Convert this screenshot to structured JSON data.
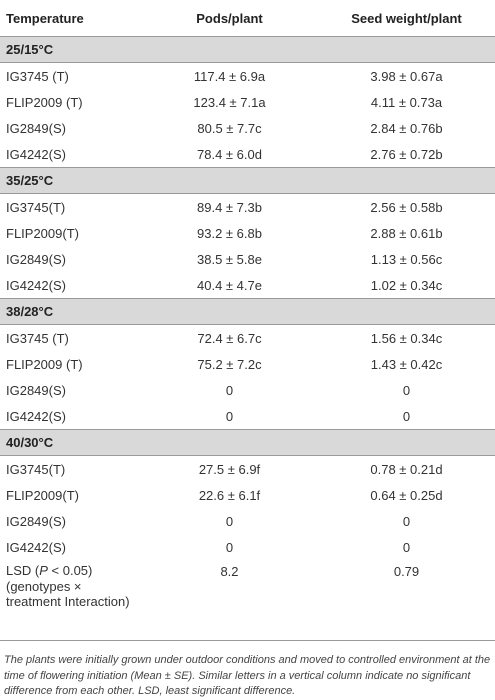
{
  "header": {
    "col1": "Temperature",
    "col2": "Pods/plant",
    "col3": "Seed weight/plant"
  },
  "groups": [
    {
      "label": "25/15°C",
      "rows": [
        {
          "genotype": "IG3745 (T)",
          "pods": "117.4 ± 6.9a",
          "seed": "3.98 ± 0.67a"
        },
        {
          "genotype": "FLIP2009 (T)",
          "pods": "123.4 ± 7.1a",
          "seed": "4.11 ± 0.73a"
        },
        {
          "genotype": "IG2849(S)",
          "pods": "80.5 ± 7.7c",
          "seed": "2.84 ± 0.76b"
        },
        {
          "genotype": "IG4242(S)",
          "pods": "78.4 ± 6.0d",
          "seed": "2.76 ± 0.72b"
        }
      ]
    },
    {
      "label": "35/25°C",
      "rows": [
        {
          "genotype": "IG3745(T)",
          "pods": "89.4 ± 7.3b",
          "seed": "2.56 ± 0.58b"
        },
        {
          "genotype": "FLIP2009(T)",
          "pods": "93.2 ± 6.8b",
          "seed": "2.88 ± 0.61b"
        },
        {
          "genotype": "IG2849(S)",
          "pods": "38.5 ± 5.8e",
          "seed": "1.13 ± 0.56c"
        },
        {
          "genotype": "IG4242(S)",
          "pods": "40.4 ± 4.7e",
          "seed": "1.02 ± 0.34c"
        }
      ]
    },
    {
      "label": "38/28°C",
      "rows": [
        {
          "genotype": "IG3745 (T)",
          "pods": "72.4 ± 6.7c",
          "seed": "1.56 ± 0.34c"
        },
        {
          "genotype": "FLIP2009 (T)",
          "pods": "75.2 ± 7.2c",
          "seed": "1.43 ± 0.42c"
        },
        {
          "genotype": "IG2849(S)",
          "pods": "0",
          "seed": "0"
        },
        {
          "genotype": "IG4242(S)",
          "pods": "0",
          "seed": "0"
        }
      ]
    },
    {
      "label": "40/30°C",
      "rows": [
        {
          "genotype": "IG3745(T)",
          "pods": "27.5 ± 6.9f",
          "seed": "0.78 ± 0.21d"
        },
        {
          "genotype": "FLIP2009(T)",
          "pods": "22.6 ± 6.1f",
          "seed": "0.64 ± 0.25d"
        },
        {
          "genotype": "IG2849(S)",
          "pods": "0",
          "seed": "0"
        },
        {
          "genotype": "IG4242(S)",
          "pods": "0",
          "seed": "0"
        }
      ]
    }
  ],
  "lsd": {
    "label_prefix": "LSD (",
    "label_p": "P",
    "label_rest": " < 0.05) (genotypes × treatment Interaction)",
    "pods": "8.2",
    "seed": "0.79"
  },
  "footnote": "The plants were initially grown under outdoor conditions and moved to controlled environment at the time of flowering initiation (Mean ± SE). Similar letters in a vertical column indicate no significant difference from each other. LSD, least significant difference."
}
